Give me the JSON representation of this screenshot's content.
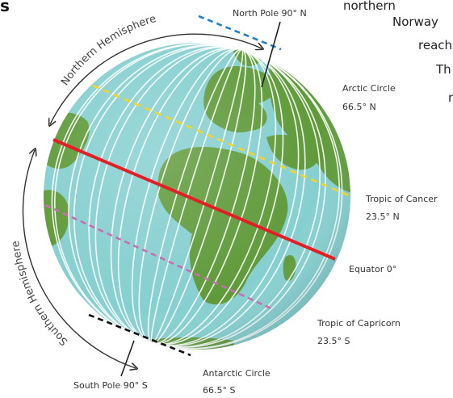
{
  "corner_fragment": "s",
  "text_fragments": [
    "northern",
    "Norway",
    "reach",
    "Th",
    "n"
  ],
  "arcs": {
    "northern": "Northern Hemisphere",
    "southern": "Southern Hemisphere"
  },
  "labels": {
    "north_pole": "North Pole 90° N",
    "south_pole": "South Pole 90° S",
    "arctic": [
      "Arctic Circle",
      "66.5° N"
    ],
    "cancer": [
      "Tropic of Cancer",
      "23.5° N"
    ],
    "equator": "Equator 0°",
    "capricorn": [
      "Tropic of Capricorn",
      "23.5° S"
    ],
    "antarctic": [
      "Antarctic Circle",
      "66.5° S"
    ]
  },
  "colors": {
    "ocean": "#86cfd0",
    "land": "#5f9a3a",
    "meridian": "#ffffff",
    "equator": "#e31e24",
    "tropic_cancer": "#f2d52c",
    "tropic_capricorn": "#c76fb2",
    "arctic": "#1f7fc9",
    "antarctic": "#111111"
  }
}
